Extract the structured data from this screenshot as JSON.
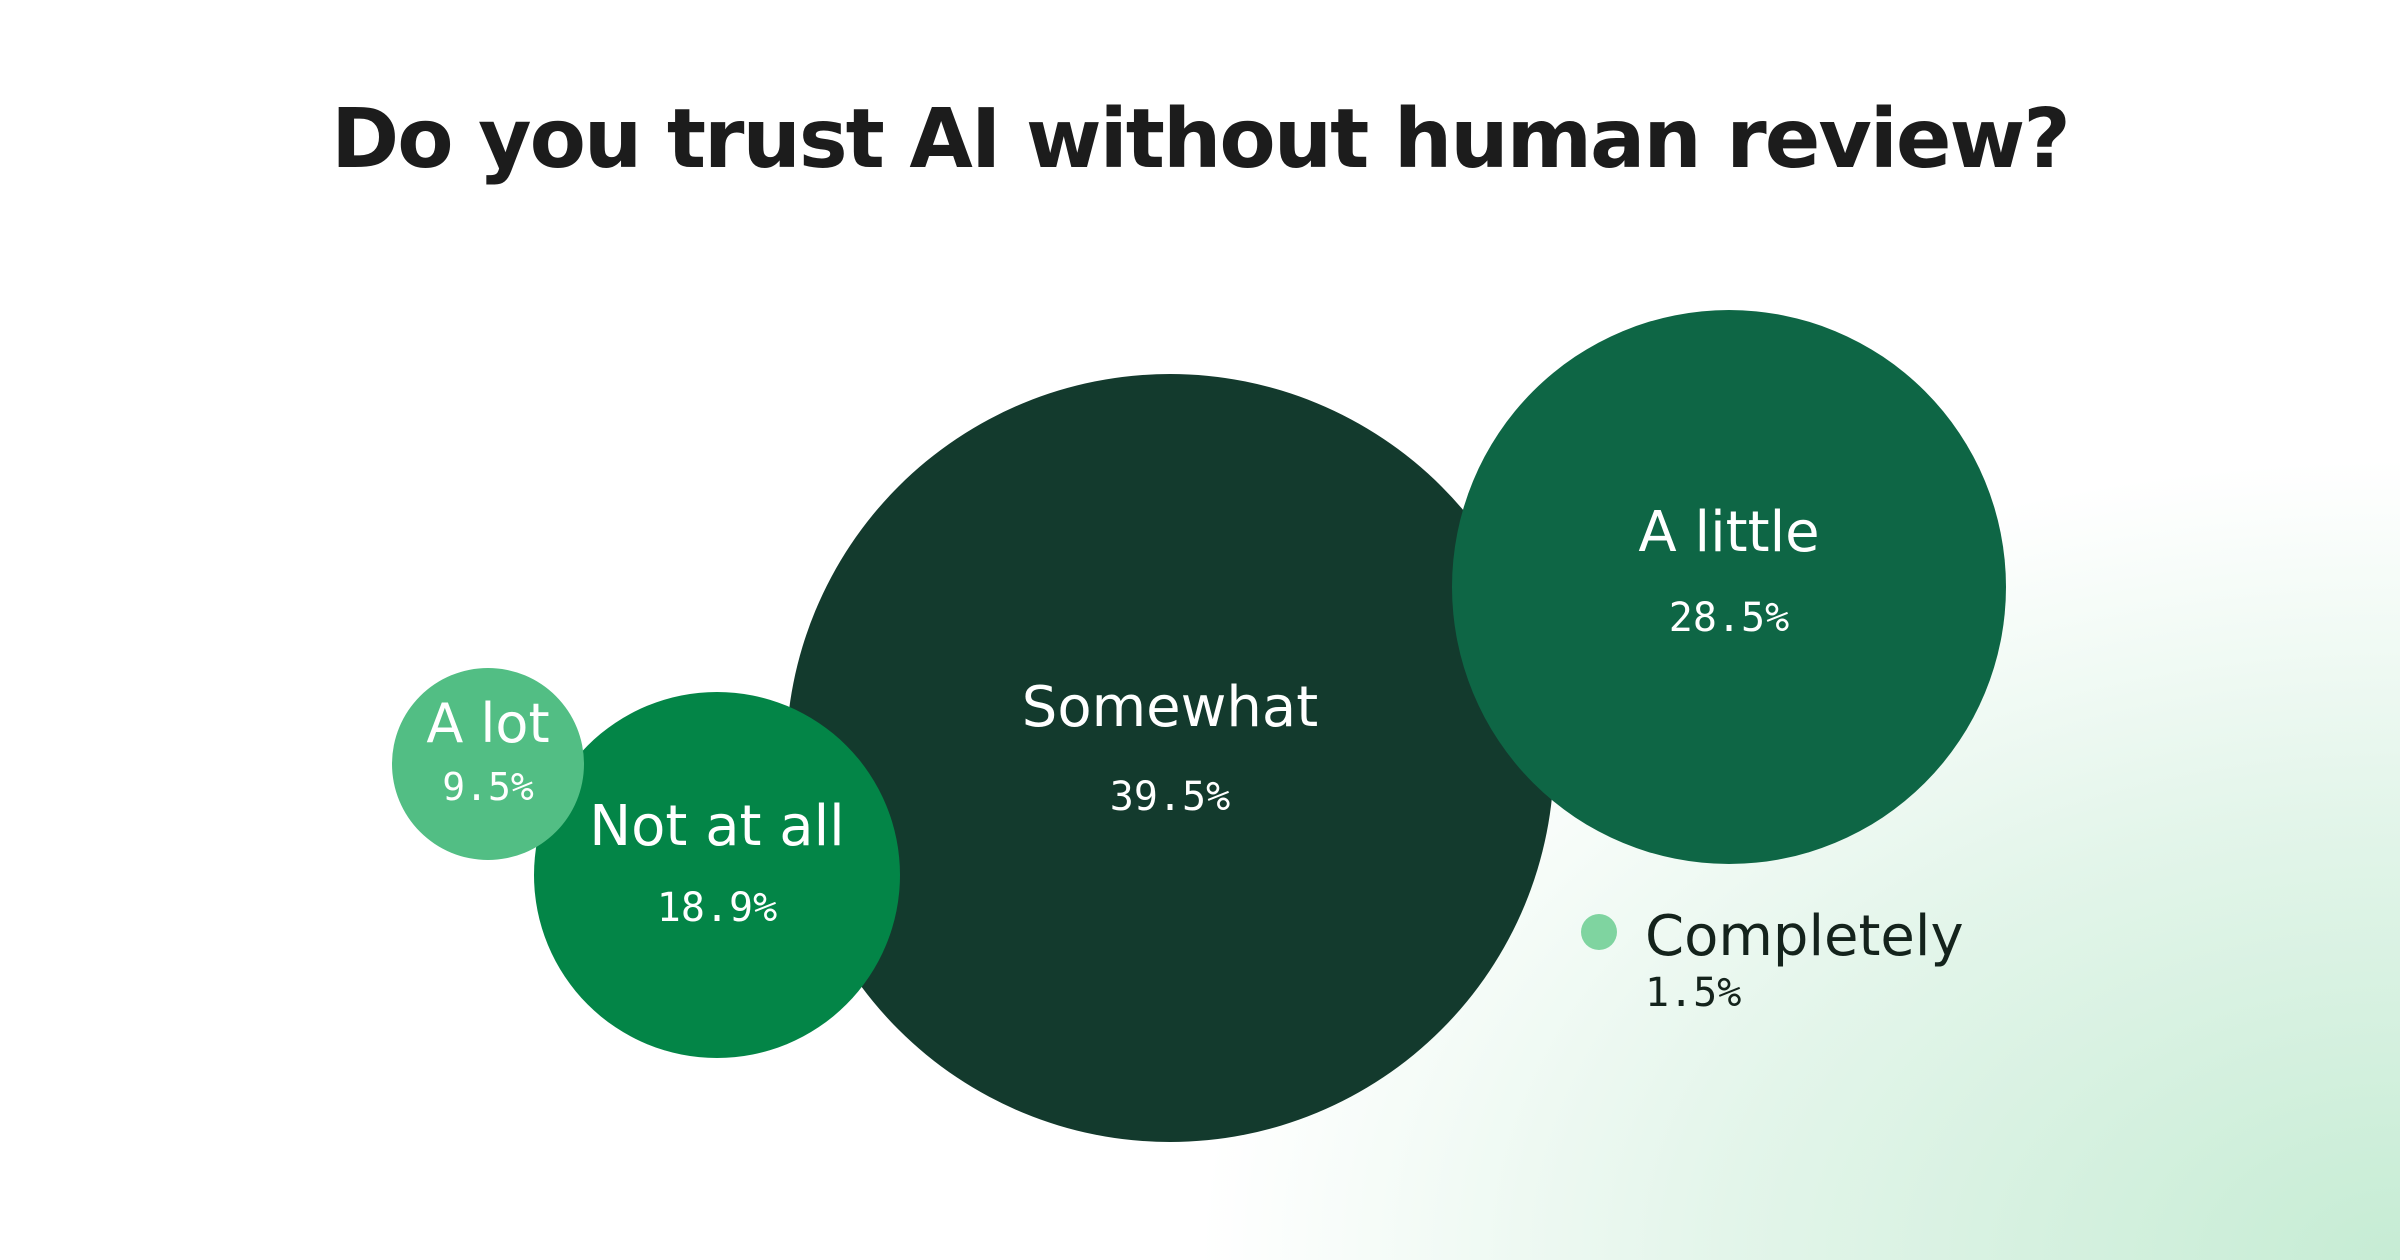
{
  "chart_data": {
    "type": "bubble",
    "title": "Do you trust AI without human review?",
    "unit": "%",
    "series": [
      {
        "name": "Somewhat",
        "value": 39.5,
        "value_label": "39.5%",
        "color": "#133a2d"
      },
      {
        "name": "A little",
        "value": 28.5,
        "value_label": "28.5%",
        "color": "#0e6645"
      },
      {
        "name": "Not at all",
        "value": 18.9,
        "value_label": "18.9%",
        "color": "#038547"
      },
      {
        "name": "A lot",
        "value": 9.5,
        "value_label": "9.5%",
        "color": "#52be84"
      },
      {
        "name": "Completely",
        "value": 1.5,
        "value_label": "1.5%",
        "color": "#7fd4a0",
        "label_style": "legend"
      }
    ]
  }
}
